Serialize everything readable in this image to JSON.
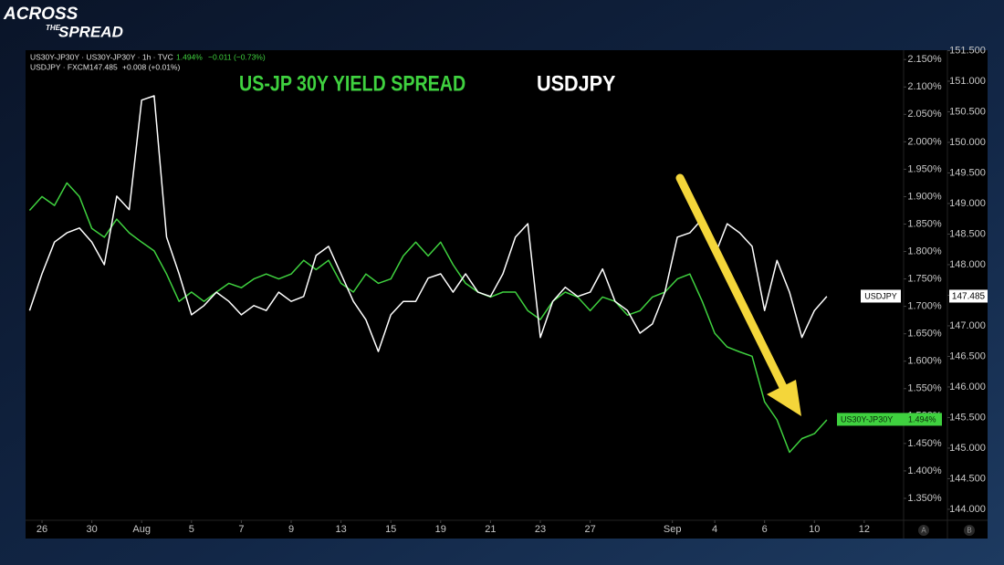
{
  "brand": [
    "ACROSS",
    "THE",
    "SPREAD"
  ],
  "header": [
    {
      "text": "US30Y-JP30Y · US30Y-JP30Y · 1h · TVC",
      "value": "1.494%",
      "change": "−0.011 (−0.73%)"
    },
    {
      "text": "USDJPY · FXCM",
      "value": "147.485",
      "change": "+0.008 (+0.01%)"
    }
  ],
  "axis_buttons": [
    "A",
    "B"
  ],
  "chart_data": {
    "type": "line",
    "titles": [
      {
        "text": "US-JP 30Y YIELD SPREAD",
        "color": "#3fd13f"
      },
      {
        "text": "USDJPY",
        "color": "#ffffff"
      }
    ],
    "x": [
      -0.5,
      0,
      0.5,
      1,
      1.5,
      2,
      2.5,
      3,
      3.5,
      4,
      4.5,
      5,
      5.5,
      6,
      6.5,
      7,
      7.5,
      8,
      8.5,
      9,
      9.5,
      10,
      10.5,
      11,
      11.5,
      12,
      12.5,
      13,
      13.5,
      14,
      14.5,
      15,
      15.5,
      16,
      16.5,
      17,
      17.5,
      18,
      18.5,
      19,
      19.5,
      20,
      20.5,
      21,
      21.5,
      22,
      22.5,
      23,
      23.5,
      24,
      24.5,
      25,
      25.5,
      26,
      26.5,
      27,
      27.5,
      28,
      28.5,
      29,
      29.5,
      30,
      30.5,
      31,
      31.5
    ],
    "xlim": [
      -0.66,
      34.58
    ],
    "xticks": [
      {
        "value": 0,
        "label": "26"
      },
      {
        "value": 2,
        "label": "30"
      },
      {
        "value": 4,
        "label": "Aug"
      },
      {
        "value": 6,
        "label": "5"
      },
      {
        "value": 8,
        "label": "7"
      },
      {
        "value": 10,
        "label": "9"
      },
      {
        "value": 12,
        "label": "13"
      },
      {
        "value": 14,
        "label": "15"
      },
      {
        "value": 16,
        "label": "19"
      },
      {
        "value": 18,
        "label": "21"
      },
      {
        "value": 20,
        "label": "23"
      },
      {
        "value": 22,
        "label": "27"
      },
      {
        "value": 25.3,
        "label": "Sep"
      },
      {
        "value": 27,
        "label": "4"
      },
      {
        "value": 29,
        "label": "6"
      },
      {
        "value": 31,
        "label": "10"
      },
      {
        "value": 33,
        "label": "12"
      }
    ],
    "ylim": [
      1.31,
      2.167
    ],
    "yticks": [
      {
        "value": 1.35,
        "label": "1.350%"
      },
      {
        "value": 1.4,
        "label": "1.400%"
      },
      {
        "value": 1.45,
        "label": "1.450%"
      },
      {
        "value": 1.5,
        "label": "1.500%"
      },
      {
        "value": 1.55,
        "label": "1.550%"
      },
      {
        "value": 1.6,
        "label": "1.600%"
      },
      {
        "value": 1.65,
        "label": "1.650%"
      },
      {
        "value": 1.7,
        "label": "1.700%"
      },
      {
        "value": 1.75,
        "label": "1.750%"
      },
      {
        "value": 1.8,
        "label": "1.800%"
      },
      {
        "value": 1.85,
        "label": "1.850%"
      },
      {
        "value": 1.9,
        "label": "1.900%"
      },
      {
        "value": 1.95,
        "label": "1.950%"
      },
      {
        "value": 2.0,
        "label": "2.000%"
      },
      {
        "value": 2.05,
        "label": "2.050%"
      },
      {
        "value": 2.1,
        "label": "2.100%"
      },
      {
        "value": 2.15,
        "label": "2.150%"
      }
    ],
    "y2lim": [
      143.82,
      151.507
    ],
    "y2ticks": [
      {
        "value": 144,
        "label": "144.000"
      },
      {
        "value": 144.5,
        "label": "144.500"
      },
      {
        "value": 145,
        "label": "145.000"
      },
      {
        "value": 145.5,
        "label": "145.500"
      },
      {
        "value": 146,
        "label": "146.000"
      },
      {
        "value": 146.5,
        "label": "146.500"
      },
      {
        "value": 147,
        "label": "147.000"
      },
      {
        "value": 147.5,
        "label": "147.500"
      },
      {
        "value": 148,
        "label": "148.000"
      },
      {
        "value": 148.5,
        "label": "148.500"
      },
      {
        "value": 149,
        "label": "149.000"
      },
      {
        "value": 149.5,
        "label": "149.500"
      },
      {
        "value": 150,
        "label": "150.000"
      },
      {
        "value": 150.5,
        "label": "150.500"
      },
      {
        "value": 151,
        "label": "151.000"
      },
      {
        "value": 151.5,
        "label": "151.500"
      }
    ],
    "grid": false,
    "series": [
      {
        "name": "US30Y-JP30Y",
        "color": "#3fd13f",
        "axis": "y",
        "tag": "1.494%",
        "tag_value": 1.494,
        "values": [
          1.875,
          1.9,
          1.884,
          1.925,
          1.9,
          1.842,
          1.826,
          1.859,
          1.834,
          1.817,
          1.801,
          1.759,
          1.709,
          1.726,
          1.709,
          1.726,
          1.742,
          1.734,
          1.75,
          1.759,
          1.75,
          1.759,
          1.784,
          1.767,
          1.784,
          1.742,
          1.726,
          1.759,
          1.742,
          1.75,
          1.792,
          1.817,
          1.792,
          1.817,
          1.776,
          1.742,
          1.726,
          1.717,
          1.726,
          1.726,
          1.692,
          1.676,
          1.709,
          1.726,
          1.717,
          1.692,
          1.717,
          1.709,
          1.684,
          1.692,
          1.717,
          1.726,
          1.75,
          1.759,
          1.709,
          1.651,
          1.626,
          1.617,
          1.609,
          1.526,
          1.493,
          1.434,
          1.459,
          1.468,
          1.493
        ]
      },
      {
        "name": "USDJPY",
        "color": "#ffffff",
        "axis": "y2",
        "tag": "147.485",
        "tag_value": 147.485,
        "values": [
          147.25,
          147.85,
          148.37,
          148.52,
          148.6,
          148.37,
          148.0,
          149.12,
          148.9,
          150.69,
          150.76,
          148.45,
          147.85,
          147.18,
          147.33,
          147.55,
          147.4,
          147.18,
          147.33,
          147.25,
          147.55,
          147.4,
          147.48,
          148.15,
          148.3,
          147.85,
          147.4,
          147.1,
          146.58,
          147.18,
          147.4,
          147.4,
          147.78,
          147.85,
          147.55,
          147.85,
          147.55,
          147.48,
          147.85,
          148.45,
          148.67,
          146.81,
          147.4,
          147.63,
          147.48,
          147.55,
          147.93,
          147.4,
          147.25,
          146.88,
          147.03,
          147.55,
          148.45,
          148.52,
          148.75,
          148.15,
          148.67,
          148.52,
          148.3,
          147.25,
          148.07,
          147.55,
          146.81,
          147.25,
          147.48
        ]
      }
    ]
  }
}
